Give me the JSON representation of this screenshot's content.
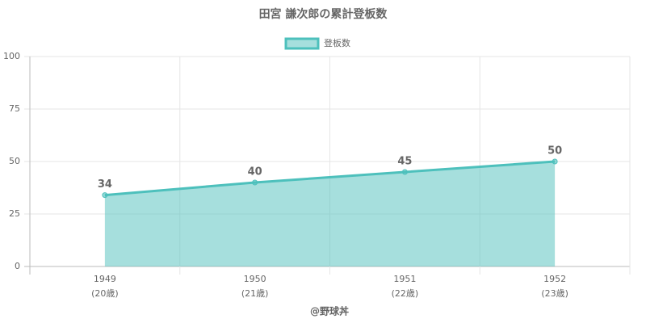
{
  "chart_data": {
    "type": "line",
    "title": "田宮 謙次郎の累計登板数",
    "categories": [
      [
        "1949",
        "(20歳)"
      ],
      [
        "1950",
        "(21歳)"
      ],
      [
        "1951",
        "(22歳)"
      ],
      [
        "1952",
        "(23歳)"
      ]
    ],
    "series": [
      {
        "name": "登板数",
        "color": "#4dc0bc",
        "values": [
          34,
          40,
          45,
          50
        ]
      }
    ],
    "ylim": [
      0,
      100
    ],
    "yticks": [
      0,
      25,
      50,
      75,
      100
    ],
    "grid": true,
    "fill": true,
    "data_labels": true,
    "legend": "top",
    "credit": "@野球丼"
  }
}
